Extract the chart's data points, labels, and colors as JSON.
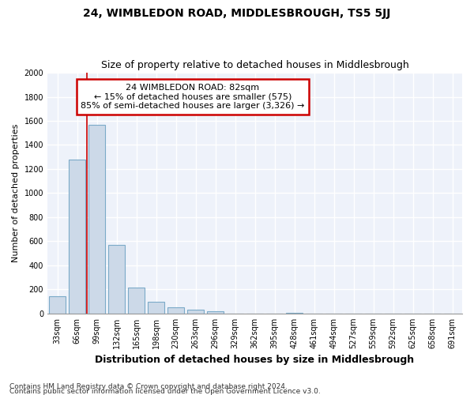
{
  "title": "24, WIMBLEDON ROAD, MIDDLESBROUGH, TS5 5JJ",
  "subtitle": "Size of property relative to detached houses in Middlesbrough",
  "xlabel": "Distribution of detached houses by size in Middlesbrough",
  "ylabel": "Number of detached properties",
  "bar_categories": [
    "33sqm",
    "66sqm",
    "99sqm",
    "132sqm",
    "165sqm",
    "198sqm",
    "230sqm",
    "263sqm",
    "296sqm",
    "329sqm",
    "362sqm",
    "395sqm",
    "428sqm",
    "461sqm",
    "494sqm",
    "527sqm",
    "559sqm",
    "592sqm",
    "625sqm",
    "658sqm",
    "691sqm"
  ],
  "bar_values": [
    140,
    1280,
    1570,
    570,
    215,
    95,
    50,
    30,
    20,
    0,
    0,
    0,
    5,
    0,
    0,
    0,
    0,
    0,
    0,
    0,
    0
  ],
  "bar_color": "#ccd9e8",
  "bar_edge_color": "#7baac8",
  "bar_edge_width": 0.8,
  "red_line_x": 1.5,
  "ylim": [
    0,
    2000
  ],
  "yticks": [
    0,
    200,
    400,
    600,
    800,
    1000,
    1200,
    1400,
    1600,
    1800,
    2000
  ],
  "annotation_title": "24 WIMBLEDON ROAD: 82sqm",
  "annotation_line1": "← 15% of detached houses are smaller (575)",
  "annotation_line2": "85% of semi-detached houses are larger (3,326) →",
  "annotation_box_color": "#ffffff",
  "annotation_box_edge": "#cc0000",
  "background_color": "#eef2fa",
  "grid_color": "#ffffff",
  "footer_line1": "Contains HM Land Registry data © Crown copyright and database right 2024.",
  "footer_line2": "Contains public sector information licensed under the Open Government Licence v3.0.",
  "title_fontsize": 10,
  "subtitle_fontsize": 9,
  "xlabel_fontsize": 9,
  "ylabel_fontsize": 8,
  "tick_fontsize": 7,
  "annotation_fontsize": 8,
  "footer_fontsize": 6.5
}
